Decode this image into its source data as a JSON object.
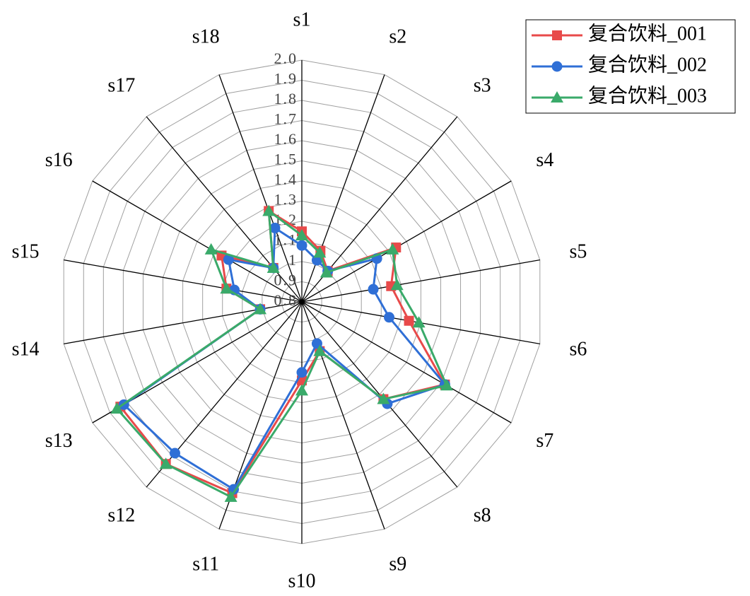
{
  "chart_data": {
    "type": "radar",
    "categories": [
      "s1",
      "s2",
      "s3",
      "s4",
      "s5",
      "s6",
      "s7",
      "s8",
      "s9",
      "s10",
      "s11",
      "s12",
      "s13",
      "s14",
      "s15",
      "s16",
      "s17",
      "s18"
    ],
    "ylim": [
      0.8,
      2.0
    ],
    "yticks": [
      {
        "value": 0.8,
        "label": "0.8"
      },
      {
        "value": 0.9,
        "label": "0.9"
      },
      1,
      1.1,
      1.2,
      1.3,
      1.4,
      1.5,
      1.6,
      1.7,
      1.8,
      1.9,
      {
        "value": 2,
        "label": "2.0"
      }
    ],
    "grid": true,
    "legend": "top-right",
    "series": [
      {
        "name": "复合饮料_001",
        "color": "#e84a4a",
        "marker": "square",
        "values": [
          1.15,
          1.07,
          1.0,
          1.34,
          1.25,
          1.34,
          1.62,
          1.43,
          1.06,
          1.19,
          1.81,
          1.85,
          1.84,
          1.01,
          1.18,
          1.26,
          1.02,
          1.28
        ]
      },
      {
        "name": "复合饮料_002",
        "color": "#2f6fd6",
        "marker": "circle",
        "values": [
          1.08,
          1.02,
          1.0,
          1.23,
          1.16,
          1.24,
          1.62,
          1.46,
          1.02,
          1.15,
          1.79,
          1.78,
          1.82,
          1.01,
          1.14,
          1.22,
          1.02,
          1.19
        ]
      },
      {
        "name": "复合饮料_003",
        "color": "#3aaa6a",
        "marker": "triangle",
        "values": [
          1.13,
          1.06,
          0.99,
          1.32,
          1.28,
          1.39,
          1.63,
          1.43,
          1.06,
          1.24,
          1.83,
          1.85,
          1.86,
          1.01,
          1.18,
          1.32,
          1.02,
          1.28
        ]
      }
    ]
  }
}
